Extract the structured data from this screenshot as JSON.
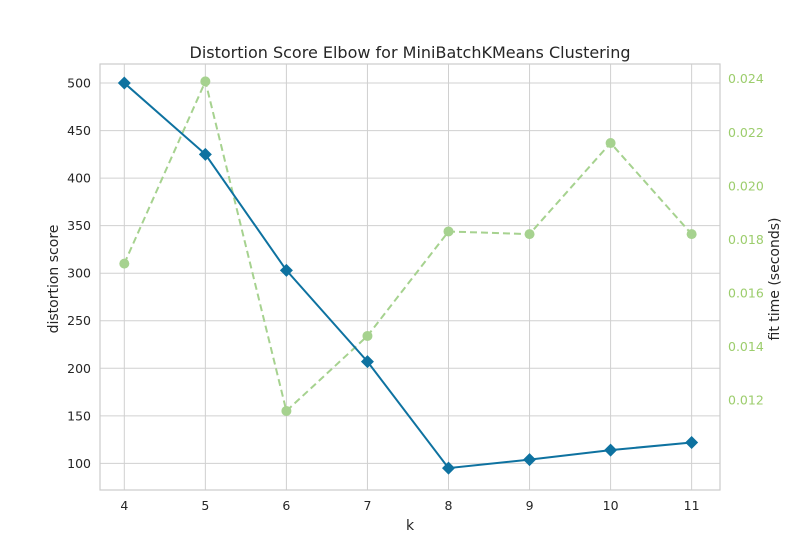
{
  "chart_data": {
    "type": "line",
    "title": "Distortion Score Elbow for MiniBatchKMeans Clustering",
    "xlabel": "k",
    "ylabel": "distortion score",
    "y2label": "fit time (seconds)",
    "x": [
      4,
      5,
      6,
      7,
      8,
      9,
      10,
      11
    ],
    "xlim": [
      3.7,
      11.35
    ],
    "ylim": [
      72,
      520
    ],
    "y2lim": [
      0.00865,
      0.02455
    ],
    "x_ticks": [
      "4",
      "5",
      "6",
      "7",
      "8",
      "9",
      "10",
      "11"
    ],
    "y_ticks": [
      "100",
      "150",
      "200",
      "250",
      "300",
      "350",
      "400",
      "450",
      "500"
    ],
    "y2_ticks": [
      "0.012",
      "0.014",
      "0.016",
      "0.018",
      "0.020",
      "0.022",
      "0.024"
    ],
    "grid": true,
    "series": [
      {
        "axis": "left",
        "values": [
          500,
          425,
          303,
          207,
          95,
          104,
          114,
          122
        ],
        "color": "#0e72a0",
        "marker": "diamond",
        "line_style": "solid"
      },
      {
        "axis": "right",
        "values": [
          0.0171,
          0.0239,
          0.0116,
          0.0144,
          0.0183,
          0.0182,
          0.0216,
          0.0182
        ],
        "color": "#a6d28f",
        "marker": "circle",
        "line_style": "dashed"
      }
    ],
    "colors": {
      "grid": "#d0d0d0",
      "frame": "#cccccc",
      "right_axis_text": "#9ccd6c"
    }
  }
}
